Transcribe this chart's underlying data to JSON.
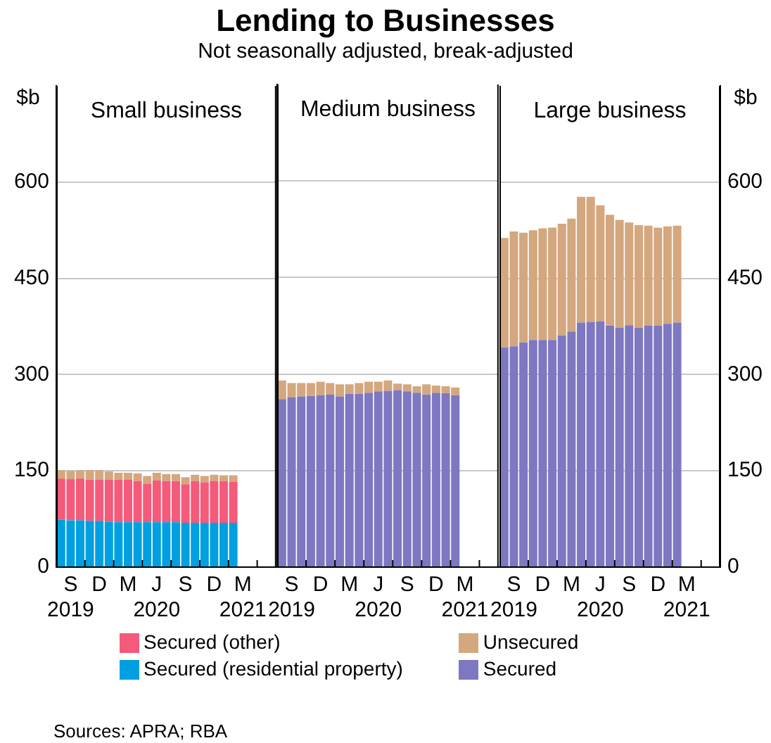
{
  "chart_data": [
    {
      "type": "bar",
      "stacked": true,
      "title": "Small business",
      "ylabel": "$b",
      "grid": "y",
      "legend": "bottom",
      "annotations": [
        "Lending to Businesses",
        "Not seasonally adjusted, break-adjusted",
        "Sources: APRA; RBA"
      ],
      "categories": [
        null,
        "S\n2019",
        null,
        null,
        "D",
        null,
        null,
        "M",
        null,
        null,
        "J\n2020",
        null,
        null,
        "S",
        null,
        null,
        "D",
        null,
        null,
        "M\n2021",
        null,
        null,
        null
      ],
      "ylim": [
        0,
        750
      ],
      "yticks": [
        0,
        150,
        300,
        450,
        600
      ],
      "series": [
        {
          "name": "Secured (residential property)",
          "color": "#00a0e0",
          "values": [
            74,
            73,
            73,
            72,
            72,
            71,
            70,
            70,
            70,
            70,
            70,
            70,
            70,
            69,
            69,
            69,
            69,
            69,
            69,
            null,
            null,
            null,
            null
          ]
        },
        {
          "name": "Secured (other)",
          "color": "#f45a7a",
          "values": [
            64,
            64,
            65,
            64,
            64,
            65,
            66,
            66,
            64,
            60,
            65,
            64,
            64,
            60,
            65,
            63,
            65,
            65,
            64,
            null,
            null,
            null,
            null
          ]
        },
        {
          "color": "#d4a77e",
          "values": [
            13,
            13,
            13,
            15,
            15,
            13,
            11,
            11,
            12,
            12,
            12,
            11,
            11,
            11,
            10,
            10,
            10,
            9,
            10,
            null,
            null,
            null,
            null
          ]
        }
      ]
    },
    {
      "type": "bar",
      "stacked": true,
      "title": "Medium business",
      "grid": "y",
      "tick_labels": "x",
      "categories": [
        null,
        "S\n2019",
        null,
        null,
        "D",
        null,
        null,
        "M",
        null,
        null,
        "J\n2020",
        null,
        null,
        "S",
        null,
        null,
        "D",
        null,
        null,
        "M\n2021",
        null,
        null,
        null
      ],
      "ylim": [
        0,
        750
      ],
      "yticks": [
        0,
        150,
        300,
        450,
        600
      ],
      "series": [
        {
          "color": "#7e77c2",
          "values": [
            261,
            264,
            265,
            266,
            267,
            268,
            265,
            269,
            269,
            271,
            273,
            274,
            275,
            273,
            271,
            268,
            271,
            270,
            267,
            null,
            null,
            null,
            null
          ]
        },
        {
          "color": "#d4a77e",
          "values": [
            29,
            22,
            21,
            20,
            21,
            18,
            19,
            15,
            17,
            17,
            15,
            16,
            10,
            11,
            10,
            16,
            11,
            11,
            12,
            null,
            null,
            null,
            null
          ]
        }
      ]
    },
    {
      "type": "bar",
      "stacked": true,
      "title": "Large business",
      "y2label": "$b",
      "grid": "y",
      "legend": "bottom",
      "categories": [
        null,
        "S\n2019",
        null,
        null,
        "D",
        null,
        null,
        "M",
        null,
        null,
        "J\n2020",
        null,
        null,
        "S",
        null,
        null,
        "D",
        null,
        null,
        "M\n2021",
        null,
        null,
        null
      ],
      "y2lim": [
        0,
        750
      ],
      "y2ticks": [
        0,
        150,
        300,
        450,
        600
      ],
      "series": [
        {
          "name": "Secured",
          "color": "#7e77c2",
          "axis": "y2",
          "values": [
            342,
            344,
            350,
            354,
            354,
            354,
            361,
            367,
            381,
            382,
            383,
            376,
            373,
            377,
            373,
            376,
            376,
            379,
            381,
            null,
            null,
            null,
            null
          ]
        },
        {
          "name": "Unsecured",
          "color": "#d4a77e",
          "axis": "y2",
          "values": [
            171,
            179,
            171,
            171,
            174,
            175,
            174,
            176,
            196,
            195,
            181,
            173,
            168,
            160,
            160,
            156,
            153,
            152,
            151,
            null,
            null,
            null,
            null
          ]
        }
      ]
    }
  ]
}
